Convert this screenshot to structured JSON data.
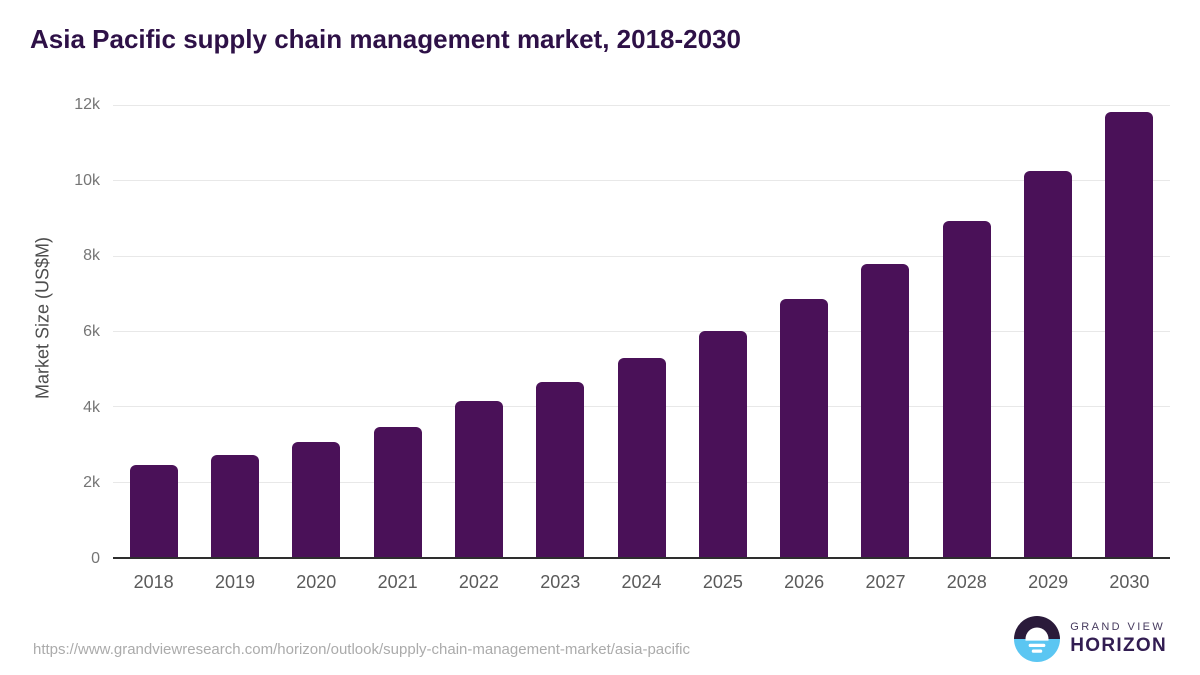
{
  "page": {
    "title": "Asia Pacific supply chain management market, 2018-2030",
    "source_url": "https://www.grandviewresearch.com/horizon/outlook/supply-chain-management-market/asia-pacific"
  },
  "logo": {
    "line1": "GRAND VIEW",
    "line2": "HORIZON"
  },
  "colors": {
    "bar": "#4a1158",
    "title": "#2e1147",
    "axis_line": "#2e2e2e",
    "gridline": "#e8e8e8",
    "tick_label": "#757575",
    "x_label": "#5a5a5a",
    "footer_text": "#ababab",
    "logo_dark": "#2a1a3a",
    "logo_blue": "#5bc6f2",
    "logo_name": "#463a5e",
    "logo_product": "#321d52"
  },
  "chart_data": {
    "type": "bar",
    "title": "Asia Pacific supply chain management market, 2018-2030",
    "categories": [
      "2018",
      "2019",
      "2020",
      "2021",
      "2022",
      "2023",
      "2024",
      "2025",
      "2026",
      "2027",
      "2028",
      "2029",
      "2030"
    ],
    "values": [
      2450,
      2720,
      3060,
      3450,
      4130,
      4650,
      5280,
      5990,
      6840,
      7780,
      8910,
      10260,
      11820
    ],
    "xlabel": "",
    "ylabel": "Market Size (US$M)",
    "ylim": [
      0,
      12000
    ],
    "yticks": [
      0,
      2000,
      4000,
      6000,
      8000,
      10000,
      12000
    ],
    "ytick_labels": [
      "0",
      "2k",
      "4k",
      "6k",
      "8k",
      "10k",
      "12k"
    ],
    "grid": "horizontal",
    "legend": "none",
    "bar_color": "#4a1158"
  }
}
